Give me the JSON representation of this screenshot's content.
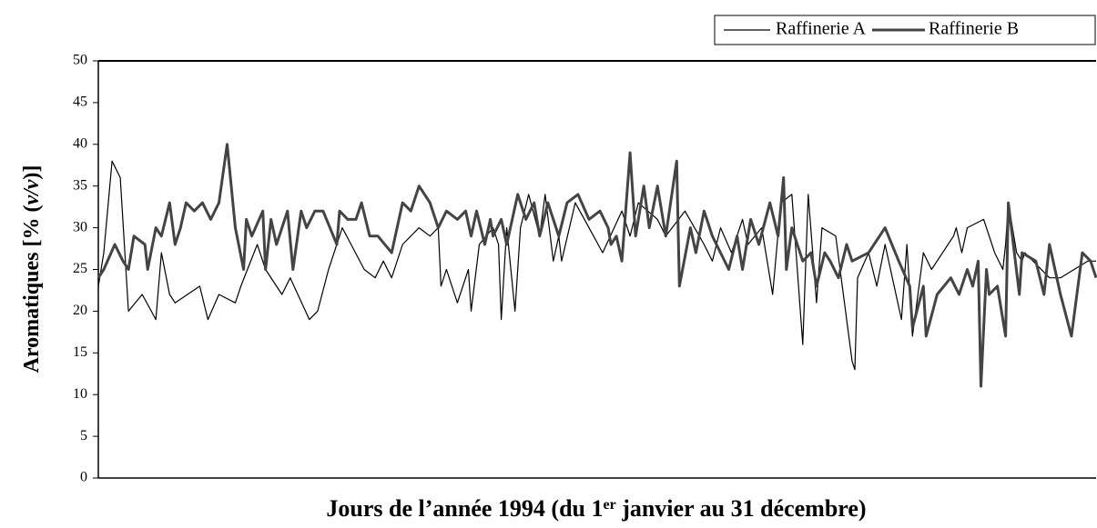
{
  "chart_data": {
    "type": "line",
    "xlabel": [
      "Jours de l’année 1994 (du 1",
      "er",
      " janvier au 31 décembre)"
    ],
    "ylabel": [
      "Aromatiques [% (",
      "v/v",
      ")]"
    ],
    "xlim": [
      1,
      365
    ],
    "ylim": [
      0,
      50
    ],
    "yticks": [
      0,
      5,
      10,
      15,
      20,
      25,
      30,
      35,
      40,
      45,
      50
    ],
    "grid": false,
    "legend": "top-right",
    "series": [
      {
        "name": "Raffinerie A",
        "color": "#000000",
        "width": 1.2,
        "x": [
          1,
          3,
          6,
          9,
          12,
          17,
          22,
          24,
          27,
          29,
          38,
          41,
          45,
          51,
          53,
          59,
          62,
          68,
          71,
          78,
          81,
          85,
          90,
          98,
          102,
          105,
          108,
          112,
          118,
          122,
          125,
          126,
          128,
          132,
          136,
          137,
          140,
          145,
          147,
          148,
          150,
          153,
          155,
          158,
          162,
          164,
          167,
          169,
          170,
          175,
          180,
          185,
          192,
          195,
          198,
          205,
          208,
          215,
          222,
          225,
          228,
          232,
          236,
          238,
          243,
          247,
          250,
          254,
          258,
          260,
          263,
          265,
          270,
          276,
          277,
          278,
          282,
          285,
          288,
          294,
          296,
          298,
          302,
          305,
          309,
          313,
          314,
          316,
          318,
          324,
          327,
          328,
          331,
          332,
          333,
          336,
          338,
          339,
          348,
          352,
          357,
          362,
          365
        ],
        "values": [
          23,
          27,
          38,
          36,
          20,
          22,
          19,
          27,
          22,
          21,
          23,
          19,
          22,
          21,
          23,
          28,
          25,
          22,
          24,
          19,
          20,
          25,
          30,
          25,
          24,
          26,
          24,
          28,
          30,
          29,
          30,
          23,
          25,
          21,
          25,
          20,
          28,
          30,
          28,
          19,
          30,
          20,
          30,
          34,
          29,
          34,
          26,
          29,
          26,
          33,
          30,
          27,
          32,
          29,
          33,
          31,
          29,
          32,
          28,
          26,
          30,
          27,
          31,
          28,
          30,
          22,
          33,
          34,
          16,
          34,
          21,
          30,
          29,
          14,
          13,
          24,
          27,
          23,
          28,
          19,
          28,
          17,
          27,
          25,
          27,
          29,
          30,
          27,
          30,
          31,
          28,
          27,
          25,
          28,
          33,
          27,
          26,
          27,
          24,
          24,
          25,
          26,
          26
        ]
      },
      {
        "name": "Raffinerie B",
        "color": "#444444",
        "width": 3,
        "x": [
          1,
          3,
          7,
          10,
          12,
          14,
          18,
          19,
          22,
          24,
          27,
          29,
          31,
          33,
          36,
          39,
          42,
          45,
          48,
          51,
          54,
          55,
          57,
          61,
          62,
          64,
          66,
          70,
          72,
          75,
          77,
          80,
          83,
          88,
          89,
          92,
          95,
          97,
          100,
          103,
          108,
          112,
          115,
          118,
          122,
          125,
          128,
          132,
          135,
          137,
          139,
          142,
          144,
          145,
          148,
          150,
          154,
          157,
          160,
          162,
          165,
          169,
          172,
          176,
          180,
          184,
          187,
          188,
          190,
          192,
          195,
          197,
          200,
          202,
          205,
          208,
          212,
          213,
          217,
          219,
          222,
          225,
          228,
          231,
          234,
          236,
          239,
          242,
          246,
          249,
          251,
          252,
          254,
          258,
          261,
          263,
          266,
          268,
          271,
          274,
          276,
          282,
          288,
          293,
          297,
          298,
          302,
          303,
          307,
          312,
          315,
          318,
          320,
          322,
          323,
          325,
          326,
          329,
          332,
          333,
          337,
          338,
          343,
          346,
          348,
          352,
          356,
          360,
          363,
          365
        ],
        "values": [
          24,
          25,
          28,
          26,
          25,
          29,
          28,
          25,
          30,
          29,
          33,
          28,
          30,
          33,
          32,
          33,
          31,
          33,
          40,
          30,
          25,
          31,
          29,
          32,
          25,
          31,
          28,
          32,
          25,
          32,
          30,
          32,
          32,
          28,
          32,
          31,
          31,
          33,
          29,
          29,
          27,
          33,
          32,
          35,
          33,
          30,
          32,
          31,
          32,
          29,
          32,
          28,
          31,
          29,
          31,
          28,
          34,
          31,
          33,
          29,
          33,
          29,
          33,
          34,
          31,
          32,
          30,
          28,
          29,
          26,
          39,
          29,
          35,
          30,
          35,
          29,
          38,
          23,
          30,
          27,
          32,
          29,
          27,
          25,
          29,
          25,
          31,
          28,
          33,
          29,
          36,
          25,
          30,
          26,
          27,
          23,
          27,
          26,
          24,
          28,
          26,
          27,
          30,
          26,
          23,
          18,
          23,
          17,
          22,
          24,
          22,
          25,
          23,
          26,
          11,
          25,
          22,
          23,
          17,
          33,
          22,
          27,
          26,
          22,
          28,
          22,
          17,
          27,
          26,
          24
        ]
      }
    ]
  }
}
